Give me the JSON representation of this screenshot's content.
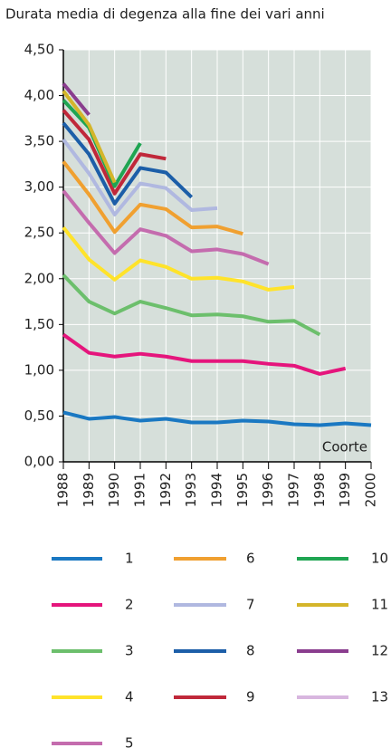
{
  "chart_data": {
    "type": "line",
    "title": "Durata media di degenza alla fine dei vari anni",
    "annotation": "Coorte",
    "x": [
      1988,
      1989,
      1990,
      1991,
      1992,
      1993,
      1994,
      1995,
      1996,
      1997,
      1998,
      1999,
      2000
    ],
    "xlim": [
      1988,
      2000
    ],
    "xticks": [
      1988,
      1989,
      1990,
      1991,
      1992,
      1993,
      1994,
      1995,
      1996,
      1997,
      1998,
      1999,
      2000
    ],
    "ylim": [
      0,
      4.5
    ],
    "yticks": [
      {
        "value": 0,
        "label": "0,00"
      },
      {
        "value": 0.5,
        "label": "0,50"
      },
      {
        "value": 1,
        "label": "1,00"
      },
      {
        "value": 1.5,
        "label": "1,50"
      },
      {
        "value": 2,
        "label": "2,00"
      },
      {
        "value": 2.5,
        "label": "2,50"
      },
      {
        "value": 3,
        "label": "3,00"
      },
      {
        "value": 3.5,
        "label": "3,50"
      },
      {
        "value": 4,
        "label": "4,00"
      },
      {
        "value": 4.5,
        "label": "4,50"
      }
    ],
    "grid": true,
    "series": [
      {
        "name": "1",
        "color": "#1a78c2",
        "values": [
          0.54,
          0.47,
          0.49,
          0.45,
          0.47,
          0.43,
          0.43,
          0.45,
          0.44,
          0.41,
          0.4,
          0.42,
          0.4
        ]
      },
      {
        "name": "2",
        "color": "#e5157c",
        "values": [
          1.39,
          1.19,
          1.15,
          1.18,
          1.15,
          1.1,
          1.1,
          1.1,
          1.07,
          1.05,
          0.96,
          1.02,
          null
        ]
      },
      {
        "name": "3",
        "color": "#6cbf6c",
        "values": [
          2.04,
          1.75,
          1.62,
          1.75,
          1.68,
          1.6,
          1.61,
          1.59,
          1.53,
          1.54,
          1.39,
          null,
          null
        ]
      },
      {
        "name": "4",
        "color": "#ffe32a",
        "values": [
          2.56,
          2.21,
          1.99,
          2.2,
          2.13,
          2.0,
          2.01,
          1.97,
          1.88,
          1.91,
          null,
          null,
          null
        ]
      },
      {
        "name": "5",
        "color": "#c46cae",
        "values": [
          2.96,
          2.61,
          2.28,
          2.54,
          2.47,
          2.3,
          2.32,
          2.27,
          2.16,
          null,
          null,
          null,
          null
        ]
      },
      {
        "name": "6",
        "color": "#f0a030",
        "values": [
          3.28,
          2.92,
          2.51,
          2.81,
          2.76,
          2.56,
          2.57,
          2.49,
          null,
          null,
          null,
          null,
          null
        ]
      },
      {
        "name": "7",
        "color": "#b0b8e0",
        "values": [
          3.52,
          3.15,
          2.7,
          3.04,
          2.99,
          2.75,
          2.77,
          null,
          null,
          null,
          null,
          null,
          null
        ]
      },
      {
        "name": "8",
        "color": "#1c5ea8",
        "values": [
          3.7,
          3.36,
          2.82,
          3.21,
          3.16,
          2.89,
          null,
          null,
          null,
          null,
          null,
          null,
          null
        ]
      },
      {
        "name": "9",
        "color": "#c0283a",
        "values": [
          3.84,
          3.52,
          2.93,
          3.36,
          3.31,
          null,
          null,
          null,
          null,
          null,
          null,
          null,
          null
        ]
      },
      {
        "name": "10",
        "color": "#1fa552",
        "values": [
          3.95,
          3.65,
          3.01,
          3.48,
          null,
          null,
          null,
          null,
          null,
          null,
          null,
          null,
          null
        ]
      },
      {
        "name": "11",
        "color": "#d4b52a",
        "values": [
          4.05,
          3.68,
          3.05,
          null,
          null,
          null,
          null,
          null,
          null,
          null,
          null,
          null,
          null
        ]
      },
      {
        "name": "12",
        "color": "#8a3d8e",
        "values": [
          4.13,
          3.79,
          null,
          null,
          null,
          null,
          null,
          null,
          null,
          null,
          null,
          null,
          null
        ]
      },
      {
        "name": "13",
        "color": "#d8b6df",
        "values": [
          null,
          null,
          null,
          null,
          null,
          null,
          null,
          null,
          null,
          null,
          null,
          null,
          null
        ]
      }
    ]
  }
}
